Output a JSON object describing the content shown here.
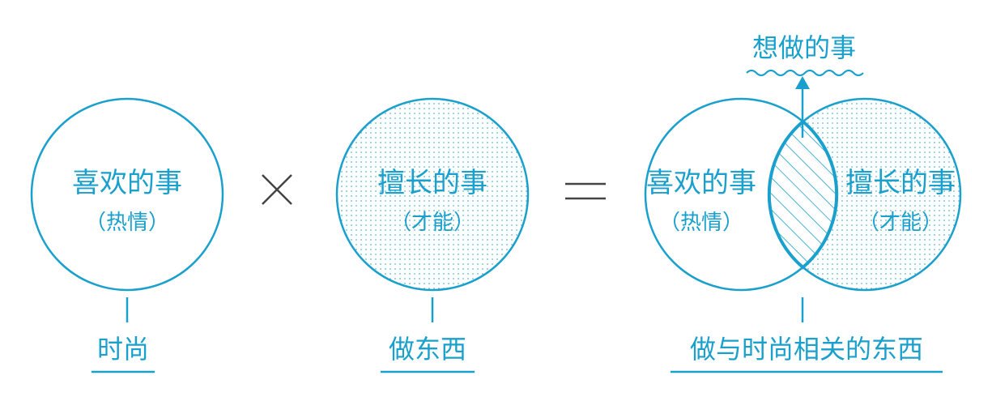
{
  "diagram": {
    "accent_color": "#1aa0cc",
    "operator_color": "#444444",
    "left_circle": {
      "title": "喜欢的事",
      "subtitle": "（热情）",
      "caption": "时尚",
      "fill": "none"
    },
    "multiply_symbol": "×",
    "middle_circle": {
      "title": "擅长的事",
      "subtitle": "（才能）",
      "caption": "做东西",
      "fill": "dotted"
    },
    "equals_symbol": "=",
    "venn": {
      "left_title": "喜欢的事",
      "left_subtitle": "（热情）",
      "right_title": "擅长的事",
      "right_subtitle": "（才能）",
      "overlap_fill": "hatched",
      "overlap_label": "想做的事",
      "caption": "做与时尚相关的东西"
    }
  }
}
